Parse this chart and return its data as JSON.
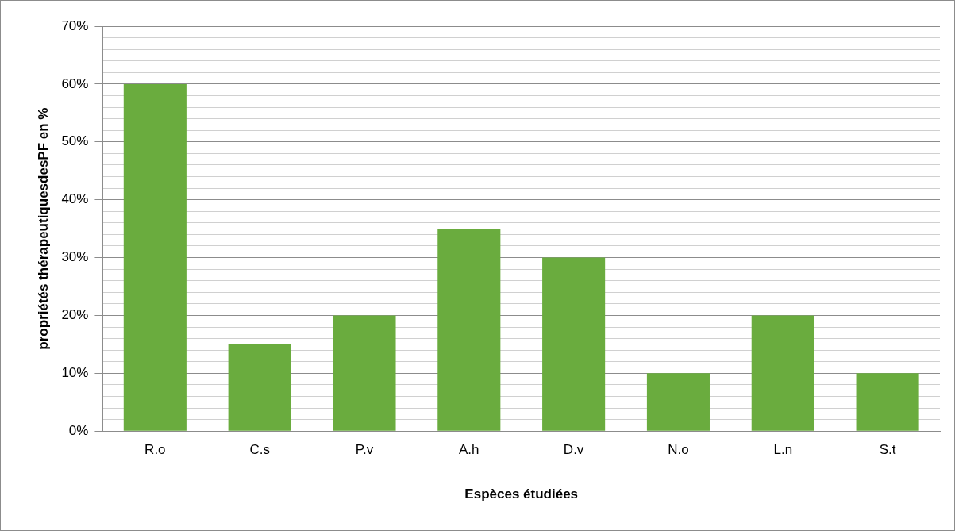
{
  "chart_data": {
    "type": "bar",
    "xlabel": "Espèces étudiées",
    "ylabel": "propriétés thérapeutiquesdesPF en %",
    "categories": [
      "R.o",
      "C.s",
      "P.v",
      "A.h",
      "D.v",
      "N.o",
      "L.n",
      "S.t"
    ],
    "values": [
      60,
      15,
      20,
      35,
      30,
      10,
      20,
      10
    ],
    "color": "#6aac3e",
    "ylim": [
      0,
      70
    ],
    "yticks": [
      {
        "value": 0,
        "label": "0%"
      },
      {
        "value": 2,
        "label": null
      },
      {
        "value": 4,
        "label": null
      },
      {
        "value": 6,
        "label": null
      },
      {
        "value": 8,
        "label": null
      },
      {
        "value": 10,
        "label": "10%"
      },
      {
        "value": 12,
        "label": null
      },
      {
        "value": 14,
        "label": null
      },
      {
        "value": 16,
        "label": null
      },
      {
        "value": 18,
        "label": null
      },
      {
        "value": 20,
        "label": "20%"
      },
      {
        "value": 22,
        "label": null
      },
      {
        "value": 24,
        "label": null
      },
      {
        "value": 26,
        "label": null
      },
      {
        "value": 28,
        "label": null
      },
      {
        "value": 30,
        "label": "30%"
      },
      {
        "value": 32,
        "label": null
      },
      {
        "value": 34,
        "label": null
      },
      {
        "value": 36,
        "label": null
      },
      {
        "value": 38,
        "label": null
      },
      {
        "value": 40,
        "label": "40%"
      },
      {
        "value": 42,
        "label": null
      },
      {
        "value": 44,
        "label": null
      },
      {
        "value": 46,
        "label": null
      },
      {
        "value": 48,
        "label": null
      },
      {
        "value": 50,
        "label": "50%"
      },
      {
        "value": 52,
        "label": null
      },
      {
        "value": 54,
        "label": null
      },
      {
        "value": 56,
        "label": null
      },
      {
        "value": 58,
        "label": null
      },
      {
        "value": 60,
        "label": "60%"
      },
      {
        "value": 62,
        "label": null
      },
      {
        "value": 64,
        "label": null
      },
      {
        "value": 66,
        "label": null
      },
      {
        "value": 68,
        "label": null
      },
      {
        "value": 70,
        "label": "70%"
      }
    ],
    "grid": "y",
    "legend": false
  }
}
